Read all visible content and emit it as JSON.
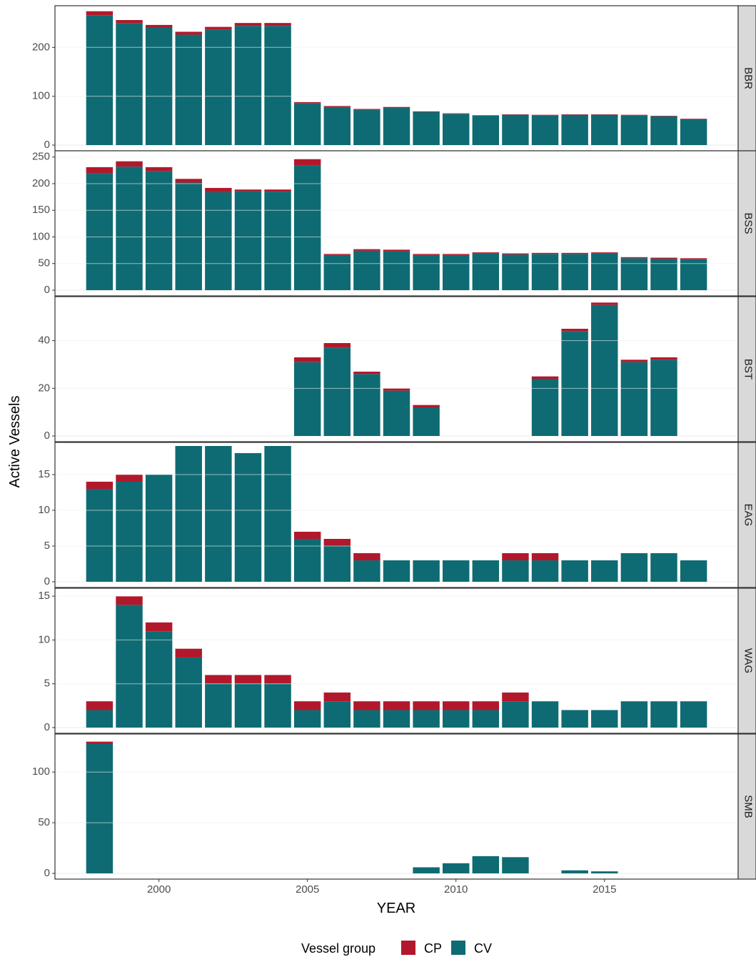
{
  "chart_data": {
    "type": "bar",
    "stacked": true,
    "faceted": true,
    "xlabel": "YEAR",
    "ylabel": "Active Vessels",
    "x": [
      1998,
      1999,
      2000,
      2001,
      2002,
      2003,
      2004,
      2005,
      2006,
      2007,
      2008,
      2009,
      2010,
      2011,
      2012,
      2013,
      2014,
      2015,
      2016,
      2017,
      2018
    ],
    "xticks": [
      2000,
      2005,
      2010,
      2015
    ],
    "xlim": [
      1996.5,
      2019.5
    ],
    "grid": true,
    "legend": {
      "title": "Vessel group",
      "position": "bottom",
      "entries": [
        {
          "name": "CP",
          "color": "#b2182b"
        },
        {
          "name": "CV",
          "color": "#0f6b73"
        }
      ]
    },
    "panels": [
      {
        "strip": "BBR",
        "ylim": [
          0,
          278
        ],
        "yticks": [
          0,
          100,
          200
        ],
        "series": [
          {
            "name": "CV",
            "values": [
              266,
              250,
              240,
              226,
              236,
              244,
              244,
              86,
              78,
              72,
              76,
              68,
              64,
              60,
              62,
              61,
              62,
              62,
              61,
              59,
              53
            ]
          },
          {
            "name": "CP",
            "values": [
              8,
              6,
              6,
              6,
              6,
              6,
              6,
              2,
              2,
              2,
              2,
              1,
              1,
              1,
              1,
              1,
              1,
              1,
              1,
              1,
              1
            ]
          }
        ]
      },
      {
        "strip": "BSS",
        "ylim": [
          0,
          255
        ],
        "yticks": [
          0,
          50,
          100,
          150,
          200,
          250
        ],
        "series": [
          {
            "name": "CV",
            "values": [
              220,
              232,
              224,
              202,
              184,
              186,
              185,
              234,
              66,
              74,
              73,
              66,
              66,
              69,
              67,
              68,
              68,
              69,
              60,
              59,
              58
            ]
          },
          {
            "name": "CP",
            "values": [
              11,
              10,
              7,
              7,
              8,
              3,
              4,
              12,
              2,
              3,
              3,
              2,
              2,
              2,
              2,
              2,
              2,
              2,
              2,
              2,
              2
            ]
          }
        ]
      },
      {
        "strip": "BST",
        "ylim": [
          0,
          57
        ],
        "yticks": [
          0,
          20,
          40
        ],
        "series": [
          {
            "name": "CV",
            "values": [
              0,
              0,
              0,
              0,
              0,
              0,
              0,
              31,
              37,
              26,
              19,
              12,
              0,
              0,
              0,
              24,
              44,
              55,
              31,
              32,
              0
            ]
          },
          {
            "name": "CP",
            "values": [
              0,
              0,
              0,
              0,
              0,
              0,
              0,
              2,
              2,
              1,
              1,
              1,
              0,
              0,
              0,
              1,
              1,
              1,
              1,
              1,
              0
            ]
          }
        ]
      },
      {
        "strip": "EAG",
        "ylim": [
          0,
          19
        ],
        "yticks": [
          0,
          5,
          10,
          15
        ],
        "series": [
          {
            "name": "CV",
            "values": [
              13,
              14,
              15,
              19,
              19,
              18,
              19,
              6,
              5,
              3,
              3,
              3,
              3,
              3,
              3,
              3,
              3,
              3,
              4,
              4,
              3
            ]
          },
          {
            "name": "CP",
            "values": [
              1,
              1,
              0,
              0,
              0,
              0,
              0,
              1,
              1,
              1,
              0,
              0,
              0,
              0,
              1,
              1,
              0,
              0,
              0,
              0,
              0
            ]
          }
        ]
      },
      {
        "strip": "WAG",
        "ylim": [
          0,
          15.5
        ],
        "yticks": [
          0,
          5,
          10,
          15
        ],
        "series": [
          {
            "name": "CV",
            "values": [
              2,
              14,
              11,
              8,
              5,
              5,
              5,
              2,
              3,
              2,
              2,
              2,
              2,
              2,
              3,
              3,
              2,
              2,
              3,
              3,
              3
            ]
          },
          {
            "name": "CP",
            "values": [
              1,
              1,
              1,
              1,
              1,
              1,
              1,
              1,
              1,
              1,
              1,
              1,
              1,
              1,
              1,
              0,
              0,
              0,
              0,
              0,
              0
            ]
          }
        ]
      },
      {
        "strip": "SMB",
        "ylim": [
          0,
          134
        ],
        "yticks": [
          0,
          50,
          100
        ],
        "series": [
          {
            "name": "CV",
            "values": [
              128,
              0,
              0,
              0,
              0,
              0,
              0,
              0,
              0,
              0,
              0,
              6,
              10,
              17,
              16,
              0,
              3,
              2,
              0,
              0,
              0
            ]
          },
          {
            "name": "CP",
            "values": [
              2,
              0,
              0,
              0,
              0,
              0,
              0,
              0,
              0,
              0,
              0,
              0,
              0,
              0,
              0,
              0,
              0,
              0,
              0,
              0,
              0
            ]
          }
        ]
      }
    ]
  }
}
